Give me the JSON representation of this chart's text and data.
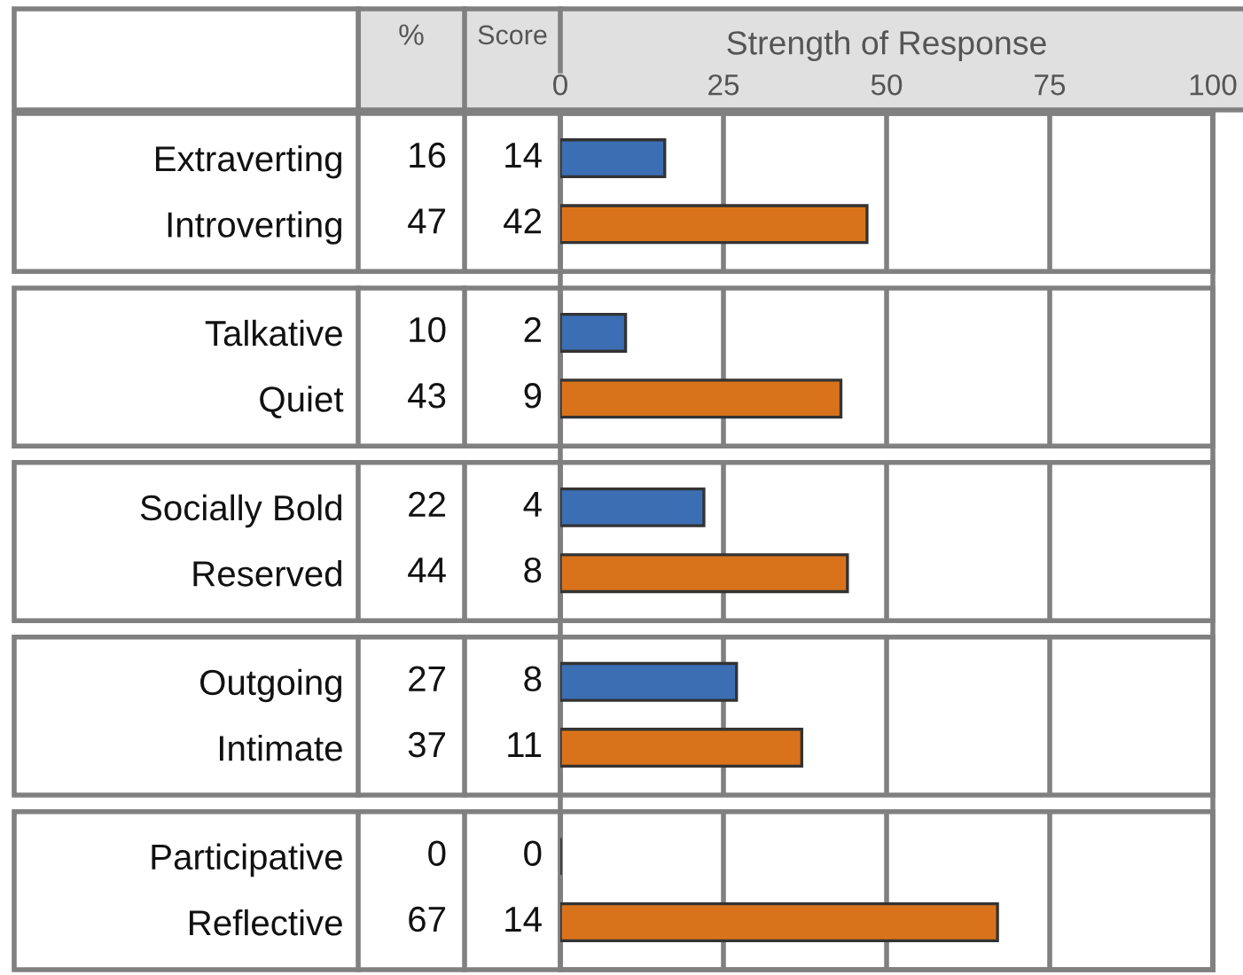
{
  "chart_data": [
    {
      "type": "bar",
      "orientation": "horizontal",
      "xlabel": "Strength of Response",
      "categories": [
        "Extraverting",
        "Introverting",
        "Talkative",
        "Quiet",
        "Socially Bold",
        "Reserved",
        "Outgoing",
        "Intimate",
        "Participative",
        "Reflective"
      ],
      "series": [
        {
          "name": "%",
          "colors": [
            "#3c6eb4",
            "#d9731b",
            "#3c6eb4",
            "#d9731b",
            "#3c6eb4",
            "#d9731b",
            "#3c6eb4",
            "#d9731b",
            "#333333",
            "#d9731b"
          ],
          "values": [
            16,
            47,
            10,
            43,
            22,
            44,
            27,
            37,
            0,
            67
          ]
        }
      ],
      "xlim": [
        0,
        100
      ],
      "xticks": [
        0,
        25,
        50,
        75,
        100
      ],
      "grid": "x",
      "data_labels": true
    },
    {
      "type": "other",
      "series": [
        {
          "name": "Score",
          "values": [
            14,
            42,
            2,
            9,
            4,
            8,
            8,
            11,
            0,
            14
          ]
        }
      ],
      "data_labels": true
    }
  ]
}
